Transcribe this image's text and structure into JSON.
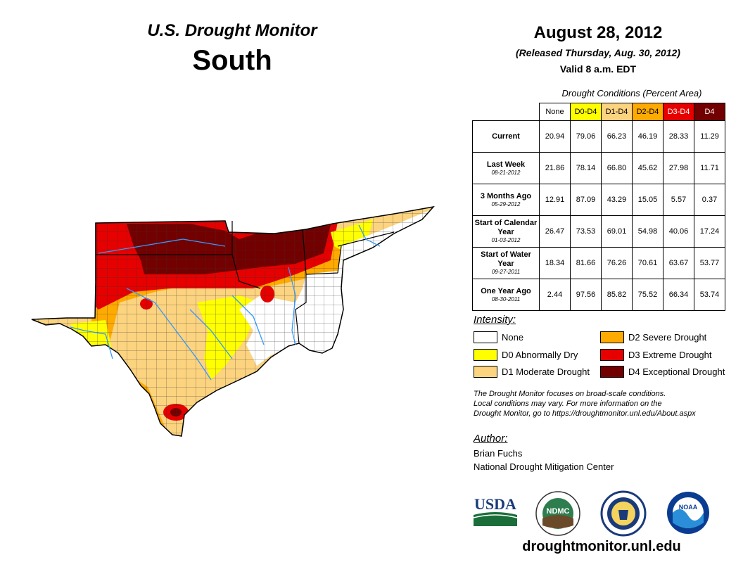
{
  "header": {
    "subtitle": "U.S. Drought Monitor",
    "region": "South",
    "date": "August 28, 2012",
    "released": "(Released Thursday, Aug. 30, 2012)",
    "valid": "Valid 8 a.m. EDT"
  },
  "table": {
    "caption": "Drought Conditions (Percent Area)",
    "columns": [
      {
        "label": "None",
        "color": "#ffffff",
        "text_color": "#000000"
      },
      {
        "label": "D0-D4",
        "color": "#ffff00",
        "text_color": "#000000"
      },
      {
        "label": "D1-D4",
        "color": "#fcd37f",
        "text_color": "#000000"
      },
      {
        "label": "D2-D4",
        "color": "#ffaa00",
        "text_color": "#000000"
      },
      {
        "label": "D3-D4",
        "color": "#e60000",
        "text_color": "#ffffff"
      },
      {
        "label": "D4",
        "color": "#730000",
        "text_color": "#ffffff"
      }
    ],
    "rows": [
      {
        "label": "Current",
        "date": "",
        "values": [
          "20.94",
          "79.06",
          "66.23",
          "46.19",
          "28.33",
          "11.29"
        ]
      },
      {
        "label": "Last Week",
        "date": "08-21-2012",
        "values": [
          "21.86",
          "78.14",
          "66.80",
          "45.62",
          "27.98",
          "11.71"
        ]
      },
      {
        "label": "3 Months Ago",
        "date": "05-29-2012",
        "values": [
          "12.91",
          "87.09",
          "43.29",
          "15.05",
          "5.57",
          "0.37"
        ]
      },
      {
        "label": "Start of Calendar Year",
        "date": "01-03-2012",
        "values": [
          "26.47",
          "73.53",
          "69.01",
          "54.98",
          "40.06",
          "17.24"
        ]
      },
      {
        "label": "Start of Water Year",
        "date": "09-27-2011",
        "values": [
          "18.34",
          "81.66",
          "76.26",
          "70.61",
          "63.67",
          "53.77"
        ]
      },
      {
        "label": "One Year Ago",
        "date": "08-30-2011",
        "values": [
          "2.44",
          "97.56",
          "85.82",
          "75.52",
          "66.34",
          "53.74"
        ]
      }
    ]
  },
  "legend": {
    "title": "Intensity:",
    "items": [
      {
        "label": "None",
        "color": "#ffffff"
      },
      {
        "label": "D0 Abnormally Dry",
        "color": "#ffff00"
      },
      {
        "label": "D1 Moderate Drought",
        "color": "#fcd37f"
      },
      {
        "label": "D2 Severe Drought",
        "color": "#ffaa00"
      },
      {
        "label": "D3 Extreme Drought",
        "color": "#e60000"
      },
      {
        "label": "D4 Exceptional Drought",
        "color": "#730000"
      }
    ]
  },
  "note": {
    "line1": "The Drought Monitor focuses on broad-scale conditions.",
    "line2": "Local conditions may vary. For more information on the",
    "line3": "Drought Monitor, go to https://droughtmonitor.unl.edu/About.aspx"
  },
  "author": {
    "title": "Author:",
    "name": "Brian Fuchs",
    "org": "National Drought Mitigation Center"
  },
  "logos": {
    "usda": "USDA",
    "ndmc": "NDMC",
    "noaa": "NOAA"
  },
  "footer_url": "droughtmonitor.unl.edu"
}
